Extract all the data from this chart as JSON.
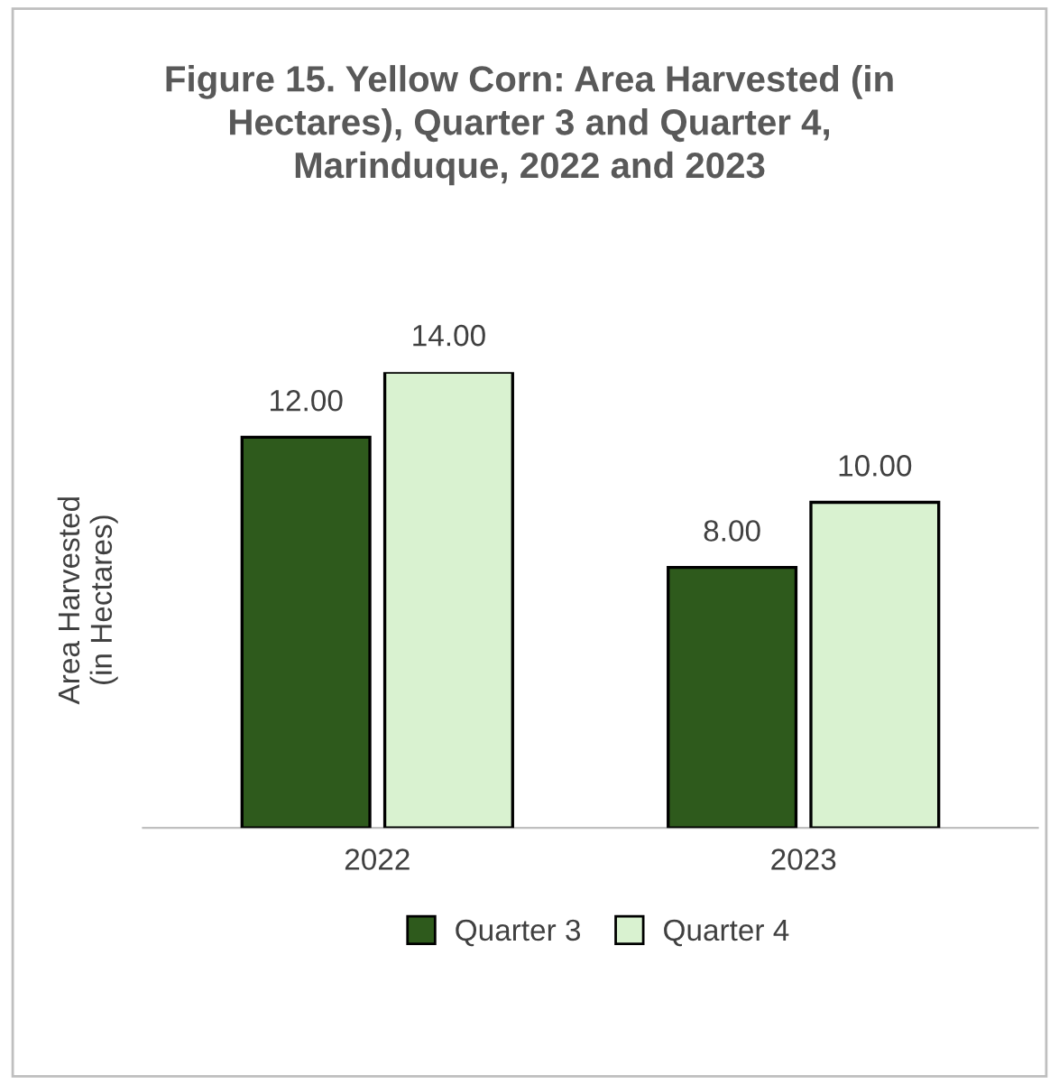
{
  "chart_data": {
    "type": "bar",
    "title": "Figure 15. Yellow Corn: Area Harvested (in Hectares), Quarter 3 and Quarter 4, Marinduque, 2022 and 2023",
    "ylabel": "Area Harvested\n(in Hectares)",
    "categories": [
      "2022",
      "2023"
    ],
    "series": [
      {
        "name": "Quarter 3",
        "color": "#2e5a1c",
        "values": [
          12,
          8
        ],
        "value_labels": [
          "12.00",
          "8.00"
        ]
      },
      {
        "name": "Quarter 4",
        "color": "#d9f2d0",
        "values": [
          14,
          10
        ],
        "value_labels": [
          "14.00",
          "10.00"
        ]
      }
    ],
    "legend": "bottom",
    "grid": false
  }
}
